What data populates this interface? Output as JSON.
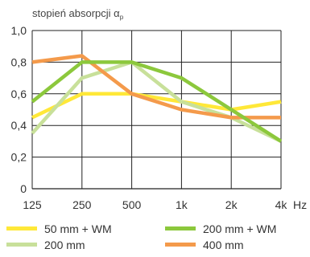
{
  "chart_data": {
    "type": "line",
    "ylabel": "stopień absorpcji α",
    "ylabel_sub": "p",
    "x_unit": "Hz",
    "categories": [
      "125",
      "250",
      "500",
      "1k",
      "2k",
      "4k"
    ],
    "y_ticks": [
      "0",
      "0,2",
      "0,4",
      "0,6",
      "0,8",
      "1,0"
    ],
    "ylim": [
      0,
      1.0
    ],
    "grid": true,
    "legend_position": "bottom",
    "series": [
      {
        "name": "50 mm + WM",
        "color": "#FFE838",
        "values": [
          0.45,
          0.6,
          0.6,
          0.55,
          0.5,
          0.55
        ]
      },
      {
        "name": "200 mm + WM",
        "color": "#8CC83C",
        "values": [
          0.55,
          0.8,
          0.8,
          0.7,
          0.5,
          0.3
        ]
      },
      {
        "name": "200 mm",
        "color": "#C8E09A",
        "values": [
          0.35,
          0.7,
          0.8,
          0.55,
          0.45,
          0.3
        ]
      },
      {
        "name": "400 mm",
        "color": "#F49A4B",
        "values": [
          0.8,
          0.84,
          0.6,
          0.5,
          0.45,
          0.45
        ]
      }
    ]
  }
}
